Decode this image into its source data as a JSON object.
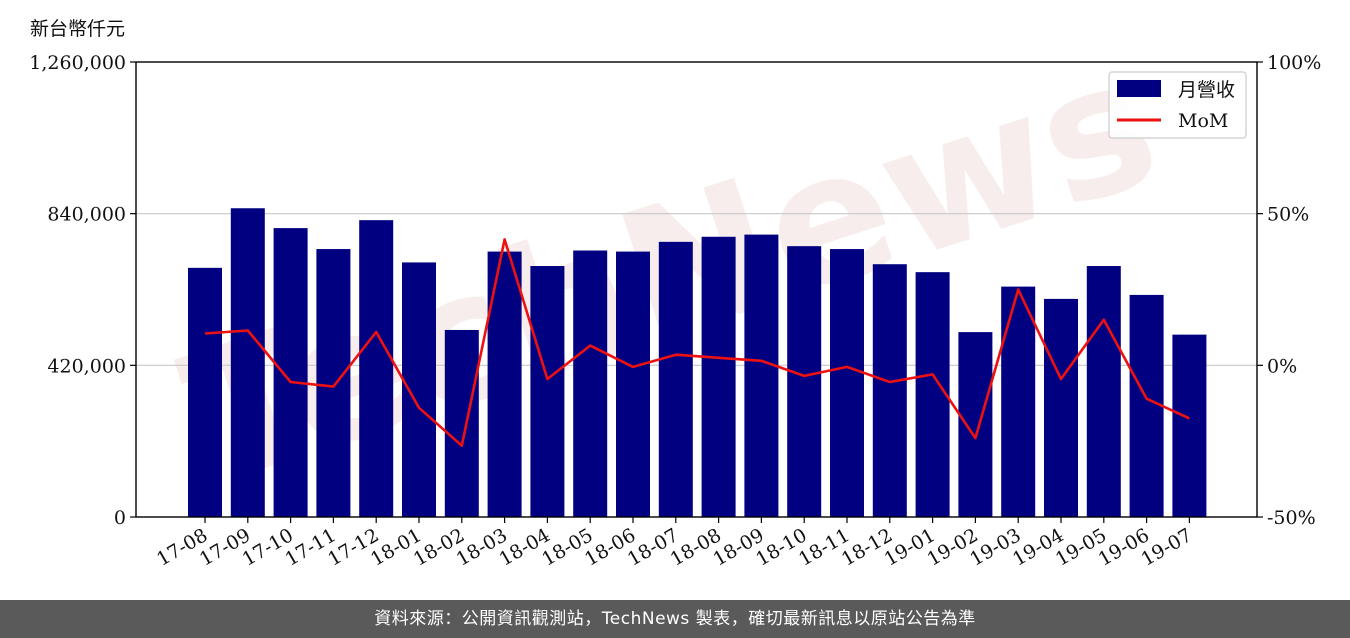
{
  "unit_label": "新台幣仟元",
  "footer_text": "資料來源：公開資訊觀測站，TechNews 製表，確切最新訊息以原站公告為準",
  "watermark_text": "TechNews",
  "colors": {
    "bar": "#000080",
    "line": "#ee1111",
    "grid": "#c8c8c8",
    "footer_bg": "#5a5a5a"
  },
  "chart_data": {
    "type": "bar",
    "categories": [
      "17-08",
      "17-09",
      "17-10",
      "17-11",
      "17-12",
      "18-01",
      "18-02",
      "18-03",
      "18-04",
      "18-05",
      "18-06",
      "18-07",
      "18-08",
      "18-09",
      "18-10",
      "18-11",
      "18-12",
      "19-01",
      "19-02",
      "19-03",
      "19-04",
      "19-05",
      "19-06",
      "19-07"
    ],
    "series": [
      {
        "name": "月營收",
        "axis": "left",
        "type": "bar",
        "values": [
          690000,
          855000,
          800000,
          742000,
          822000,
          705000,
          518000,
          735000,
          695000,
          738000,
          735000,
          762000,
          776000,
          782000,
          750000,
          742000,
          700000,
          678000,
          512000,
          638000,
          604000,
          695000,
          615000,
          505000
        ]
      },
      {
        "name": "MoM",
        "axis": "right",
        "type": "line",
        "unit": "%",
        "values": [
          10.5,
          11.5,
          -5.5,
          -7,
          11,
          -14,
          -26.5,
          41.5,
          -4.5,
          6.5,
          -0.5,
          3.5,
          2.5,
          1.5,
          -3.5,
          -0.5,
          -5.5,
          -3,
          -24,
          25,
          -4.5,
          15,
          -11,
          -17.5
        ]
      }
    ],
    "y_left": {
      "range": [
        0,
        1260000
      ],
      "ticks": [
        0,
        420000,
        840000,
        1260000
      ],
      "tick_labels": [
        "0",
        "420,000",
        "840,000",
        "1,260,000"
      ]
    },
    "y_right": {
      "range": [
        -50,
        100
      ],
      "ticks": [
        -50,
        0,
        50,
        100
      ],
      "tick_labels": [
        "-50%",
        "0%",
        "50%",
        "100%"
      ]
    },
    "grid": "horizontal",
    "legend": {
      "position": "top-right",
      "entries": [
        "月營收",
        "MoM"
      ]
    }
  }
}
